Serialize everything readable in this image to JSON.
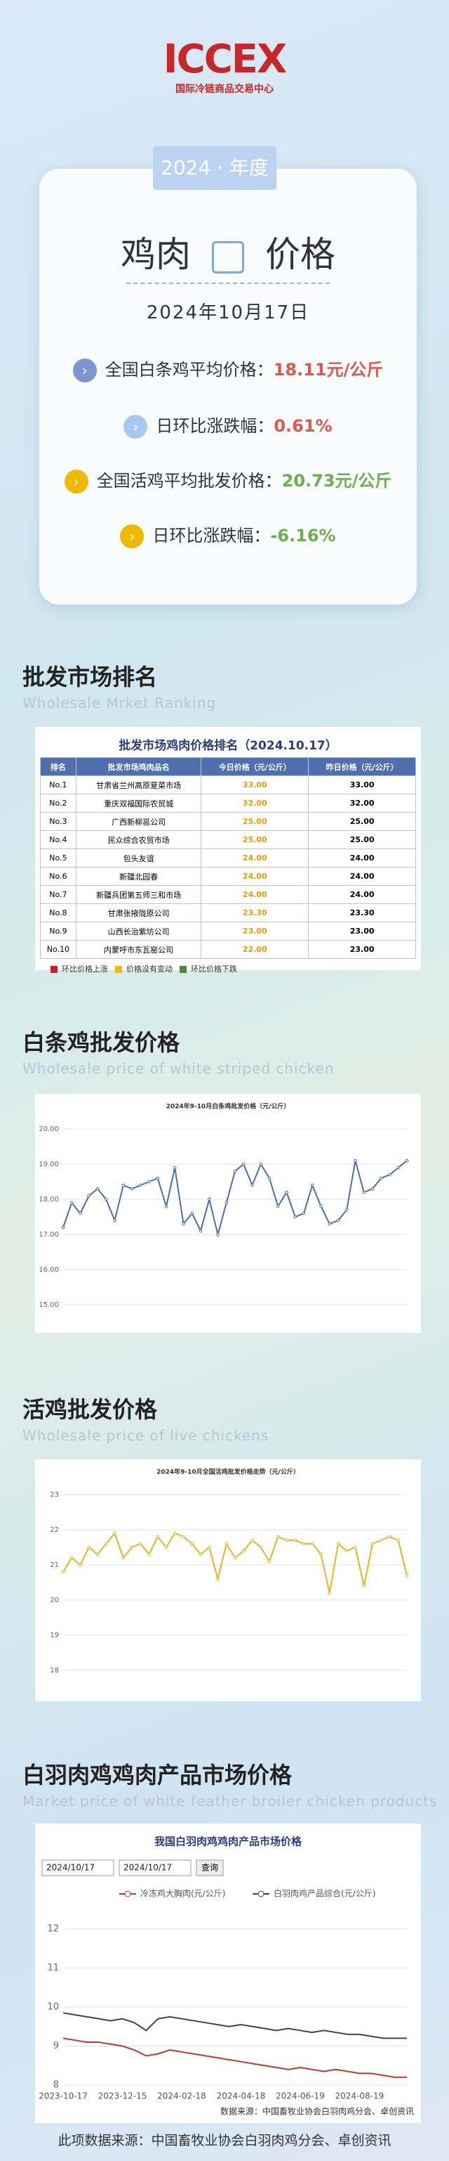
{
  "header": {
    "logo": "ICCEX",
    "org": "国际冷链商品交易中心"
  },
  "card": {
    "tab": "2024 · 年度",
    "title_left": "鸡肉",
    "title_right": "价格",
    "date": "2024年10月17日",
    "lines": [
      {
        "label": "全国白条鸡平均价格：",
        "value": "18.11元/公斤"
      },
      {
        "label": "日环比涨跌幅：",
        "value": "0.61%"
      },
      {
        "label": "全国活鸡平均批发价格：",
        "value": "20.73元/公斤"
      },
      {
        "label": "日环比涨跌幅：",
        "value": "-6.16%"
      }
    ]
  },
  "sections": [
    {
      "title": "批发市场排名",
      "subtitle": "Wholesale Mrket Ranking"
    },
    {
      "title": "白条鸡批发价格",
      "subtitle": "Wholesale price of white striped chicken"
    },
    {
      "title": "活鸡批发价格",
      "subtitle": "Wholesale price of live chickens"
    },
    {
      "title": "白羽肉鸡鸡肉产品市场价格",
      "subtitle": "Market price of white feather broiler chicken products"
    }
  ],
  "table": {
    "title": "批发市场鸡肉价格排名（2024.10.17）",
    "header": [
      "排名",
      "批发市场鸡肉品名",
      "今日价格（元/公斤）",
      "昨日价格（元/公斤）"
    ],
    "rows": [
      [
        "No.1",
        "甘肃省兰州高原夏菜市场",
        "33.00",
        "33.00"
      ],
      [
        "No.2",
        "重庆双福国际农贸城",
        "32.00",
        "32.00"
      ],
      [
        "No.3",
        "广西新柳邕公司",
        "25.00",
        "25.00"
      ],
      [
        "No.4",
        "民众综合农贸市场",
        "25.00",
        "25.00"
      ],
      [
        "No.5",
        "包头友谊",
        "24.00",
        "24.00"
      ],
      [
        "No.6",
        "新疆北园春",
        "24.00",
        "24.00"
      ],
      [
        "No.7",
        "新疆兵团第五师三和市场",
        "24.00",
        "24.00"
      ],
      [
        "No.8",
        "甘肃张掖陇原公司",
        "23.30",
        "23.30"
      ],
      [
        "No.9",
        "山西长治紫坊公司",
        "23.00",
        "23.00"
      ],
      [
        "No.10",
        "内蒙呼市东瓦窑公司",
        "22.00",
        "23.00"
      ]
    ],
    "legend": [
      {
        "name": "环比价格上涨",
        "color": "#c8202a"
      },
      {
        "name": "价格没有变动",
        "color": "#f0b800"
      },
      {
        "name": "环比价格下跌",
        "color": "#4a8a2a"
      }
    ]
  },
  "chart_data": [
    {
      "type": "line",
      "title": "2024年9-10月白条鸡批发价格（元/公斤）",
      "ylim": [
        15,
        20
      ],
      "yticks": [
        {
          "value": 15,
          "label": "15.00"
        },
        {
          "value": 16,
          "label": "16.00"
        },
        {
          "value": 17,
          "label": "17.00"
        },
        {
          "value": 18,
          "label": "18.00"
        },
        {
          "value": 19,
          "label": "19.00"
        },
        {
          "value": 20,
          "label": "20.00"
        }
      ],
      "grid": true,
      "series": [
        {
          "color": "#4a6fa5",
          "values": [
            17.2,
            17.9,
            17.6,
            18.1,
            18.3,
            18.0,
            17.4,
            18.4,
            18.3,
            18.4,
            18.5,
            18.6,
            17.8,
            18.9,
            17.3,
            17.6,
            17.1,
            18.0,
            17.0,
            17.9,
            18.8,
            19.0,
            18.4,
            19.0,
            18.6,
            17.8,
            18.2,
            17.5,
            17.6,
            18.4,
            17.8,
            17.3,
            17.4,
            17.7,
            19.1,
            18.2,
            18.3,
            18.6,
            18.7,
            18.9,
            19.1
          ]
        }
      ]
    },
    {
      "type": "line",
      "title": "2024年9-10月全国活鸡批发价格走势（元/公斤）",
      "ylim": [
        18,
        23
      ],
      "yticks": [
        18,
        19,
        20,
        21,
        22,
        23
      ],
      "grid": true,
      "series": [
        {
          "color": "#e6b422",
          "values": [
            20.8,
            21.2,
            21.0,
            21.5,
            21.3,
            21.6,
            21.9,
            21.2,
            21.5,
            21.6,
            21.3,
            21.8,
            21.5,
            21.9,
            21.8,
            21.6,
            21.3,
            21.5,
            20.6,
            21.6,
            21.2,
            21.4,
            21.7,
            21.5,
            21.1,
            21.8,
            21.7,
            21.7,
            21.6,
            21.6,
            21.3,
            20.2,
            21.6,
            21.4,
            21.5,
            20.4,
            21.6,
            21.7,
            21.8,
            21.7,
            20.7
          ]
        }
      ]
    },
    {
      "type": "line",
      "title": "我国白羽肉鸡鸡肉产品市场价格",
      "date_from": "2024/10/17",
      "date_to": "2024/10/17",
      "button": "查询",
      "source": "数据来源：中国畜牧业协会白羽肉鸡分会、卓创资讯",
      "ylim": [
        8,
        12
      ],
      "yticks": [
        8,
        9,
        10,
        11,
        12
      ],
      "grid": true,
      "categories": [
        "2023-10-17",
        null,
        null,
        null,
        null,
        "2023-12-15",
        null,
        null,
        null,
        null,
        "2024-02-18",
        null,
        null,
        null,
        null,
        "2024-04-18",
        null,
        null,
        null,
        null,
        "2024-06-19",
        null,
        null,
        null,
        null,
        "2024-08-19",
        null,
        null,
        null,
        null
      ],
      "series": [
        {
          "name": "冷冻鸡大胸肉(元/公斤)",
          "color": "#c23531",
          "values": [
            9.2,
            9.15,
            9.1,
            9.1,
            9.05,
            9.0,
            8.9,
            8.75,
            8.8,
            8.9,
            8.85,
            8.8,
            8.75,
            8.7,
            8.65,
            8.6,
            8.55,
            8.5,
            8.45,
            8.4,
            8.45,
            8.4,
            8.35,
            8.4,
            8.35,
            8.3,
            8.3,
            8.25,
            8.2,
            8.2
          ]
        },
        {
          "name": "白羽肉鸡产品综合(元/公斤)",
          "color": "#444",
          "values": [
            9.85,
            9.8,
            9.75,
            9.7,
            9.65,
            9.7,
            9.6,
            9.4,
            9.7,
            9.75,
            9.7,
            9.65,
            9.6,
            9.55,
            9.5,
            9.55,
            9.5,
            9.45,
            9.4,
            9.45,
            9.4,
            9.35,
            9.4,
            9.35,
            9.3,
            9.3,
            9.25,
            9.2,
            9.2,
            9.2
          ]
        }
      ]
    }
  ],
  "footer": "此项数据来源：中国畜牧业协会白羽肉鸡分会、卓创资讯"
}
